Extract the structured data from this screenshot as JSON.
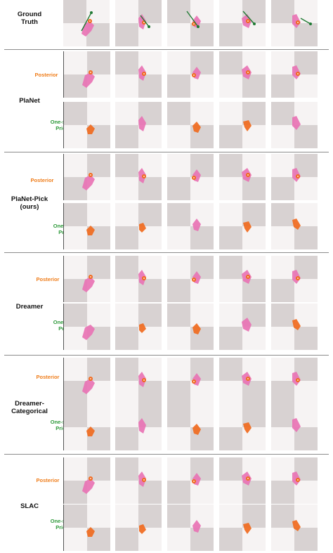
{
  "ground_truth_label": "Ground\nTruth",
  "posterior_label": "Posterior",
  "prior_label": "One-step\nPrior",
  "models": [
    "PlaNet",
    "PlaNet-Pick\n(ours)",
    "Dreamer",
    "Dreamer-\nCategorical",
    "SLAC"
  ],
  "colors": {
    "checker_dark": "#d8d2d2",
    "checker_light": "#f6f3f3",
    "pink": "#e873b4",
    "orange": "#f06a1e",
    "arrow": "#1f7a33",
    "posterior_text": "#ef7d1a",
    "prior_text": "#2f9a3b"
  }
}
